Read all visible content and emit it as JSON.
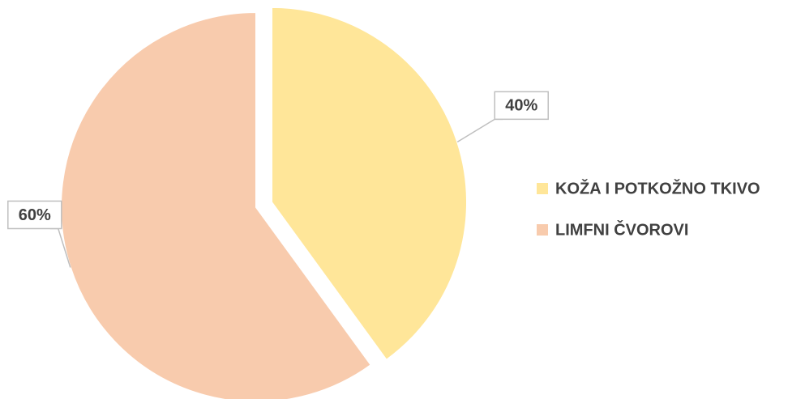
{
  "chart_data": {
    "type": "pie",
    "categories": [
      "KOŽA I POTKOŽNO TKIVO",
      "LIMFNI ČVOROVI"
    ],
    "values": [
      40,
      60
    ],
    "value_labels": [
      "40%",
      "60%"
    ],
    "colors": [
      "#FFE699",
      "#F8CBAD"
    ],
    "legend": "right"
  }
}
